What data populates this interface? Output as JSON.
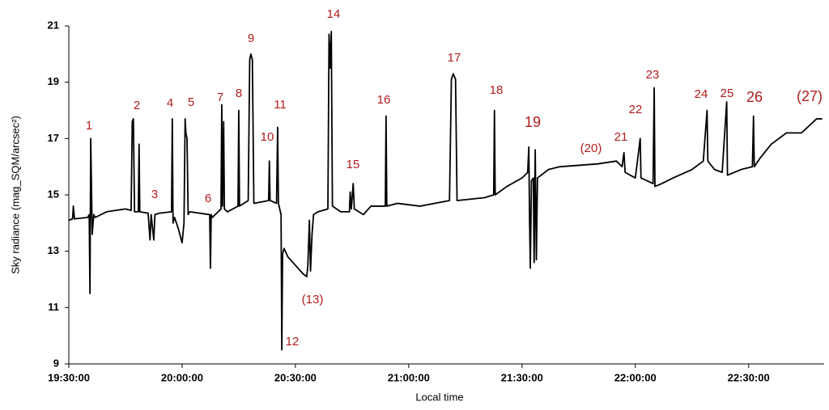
{
  "chart_data": {
    "type": "line",
    "y_label": "Sky radiance (mag_SQM/arcsec²)",
    "x_label": "Local time",
    "color": "#000000",
    "annotation_color": "#b01c1c",
    "xlim": [
      "19:30:00",
      "22:50:00"
    ],
    "xticks": [
      "19:30:00",
      "20:00:00",
      "20:30:00",
      "21:00:00",
      "21:30:00",
      "22:00:00",
      "22:30:00"
    ],
    "ylim": [
      9,
      21
    ],
    "yticks": [
      9,
      11,
      13,
      15,
      17,
      19,
      21
    ],
    "grid": false,
    "annotations": [
      "1",
      "2",
      "3",
      "4",
      "5",
      "6",
      "7",
      "8",
      "9",
      "10",
      "11",
      "12",
      "(13)",
      "14",
      "15",
      "16",
      "17",
      "18",
      "19",
      "(20)",
      "21",
      "22",
      "23",
      "24",
      "25",
      "26",
      "(27)"
    ],
    "x": [
      "19:30:00",
      "19:31:00",
      "19:31:12",
      "19:31:30",
      "19:35:00",
      "19:35:24",
      "19:35:36",
      "19:35:48",
      "19:36:12",
      "19:36:36",
      "19:37:00",
      "19:40:00",
      "19:45:00",
      "19:46:30",
      "19:46:48",
      "19:47:06",
      "19:47:24",
      "19:48:24",
      "19:48:36",
      "19:48:48",
      "19:51:00",
      "19:51:30",
      "19:51:48",
      "19:52:30",
      "19:52:48",
      "19:54:00",
      "19:57:12",
      "19:57:24",
      "19:57:36",
      "19:58:00",
      "19:59:00",
      "20:00:00",
      "20:00:30",
      "20:00:48",
      "20:01:00",
      "20:01:18",
      "20:01:36",
      "20:02:00",
      "20:07:18",
      "20:07:30",
      "20:07:42",
      "20:08:00",
      "20:10:18",
      "20:10:30",
      "20:10:42",
      "20:11:00",
      "20:11:12",
      "20:12:00",
      "20:14:48",
      "20:15:00",
      "20:15:12",
      "20:17:30",
      "20:17:54",
      "20:18:12",
      "20:18:36",
      "20:19:00",
      "20:22:54",
      "20:23:06",
      "20:23:18",
      "20:25:00",
      "20:25:18",
      "20:25:30",
      "20:26:12",
      "20:26:24",
      "20:26:36",
      "20:27:00",
      "20:28:00",
      "20:30:00",
      "20:32:00",
      "20:33:00",
      "20:33:18",
      "20:33:42",
      "20:34:00",
      "20:34:24",
      "20:34:48",
      "20:36:00",
      "20:38:36",
      "20:38:54",
      "20:39:12",
      "20:39:30",
      "20:39:48",
      "20:42:00",
      "20:44:18",
      "20:44:30",
      "20:44:48",
      "20:45:18",
      "20:45:36",
      "20:48:00",
      "20:50:00",
      "20:53:48",
      "20:54:00",
      "20:54:12",
      "20:57:00",
      "21:03:00",
      "21:10:48",
      "21:11:18",
      "21:11:48",
      "21:12:24",
      "21:12:48",
      "21:20:00",
      "21:22:30",
      "21:22:42",
      "21:22:54",
      "21:26:00",
      "21:30:00",
      "21:31:30",
      "21:31:48",
      "21:32:00",
      "21:32:12",
      "21:32:30",
      "21:33:00",
      "21:33:12",
      "21:33:30",
      "21:33:48",
      "21:34:06",
      "21:37:00",
      "21:40:00",
      "21:50:00",
      "21:55:00",
      "21:56:30",
      "21:57:00",
      "21:57:18",
      "22:00:00",
      "22:01:18",
      "22:01:30",
      "22:04:42",
      "22:05:00",
      "22:05:12",
      "22:07:00",
      "22:10:00",
      "22:15:00",
      "22:18:00",
      "22:19:00",
      "22:19:12",
      "22:21:00",
      "22:23:00",
      "22:24:12",
      "22:24:24",
      "22:28:00",
      "22:31:00",
      "22:31:18",
      "22:31:30",
      "22:33:00",
      "22:36:00",
      "22:40:00",
      "22:44:00",
      "22:48:00",
      "22:49:30"
    ],
    "values": [
      14.1,
      14.15,
      14.6,
      14.15,
      14.2,
      14.3,
      11.5,
      17.0,
      13.6,
      14.3,
      14.2,
      14.4,
      14.5,
      14.45,
      17.6,
      17.7,
      14.4,
      14.4,
      16.8,
      14.4,
      14.35,
      13.4,
      14.3,
      13.4,
      14.3,
      14.35,
      14.4,
      17.7,
      14.0,
      14.2,
      13.8,
      13.3,
      14.0,
      17.7,
      17.2,
      17.0,
      14.3,
      14.4,
      14.3,
      12.4,
      14.3,
      14.2,
      14.5,
      18.2,
      14.6,
      17.6,
      14.5,
      14.4,
      14.6,
      18.0,
      14.6,
      14.8,
      19.8,
      20.0,
      19.8,
      14.7,
      14.8,
      16.2,
      14.8,
      14.7,
      17.4,
      14.7,
      14.3,
      9.5,
      12.9,
      13.1,
      12.8,
      12.5,
      12.2,
      12.1,
      12.5,
      14.1,
      12.3,
      13.6,
      14.3,
      14.4,
      14.5,
      20.7,
      19.5,
      20.8,
      14.6,
      14.4,
      14.4,
      15.1,
      14.5,
      15.4,
      14.5,
      14.3,
      14.6,
      14.6,
      17.8,
      14.6,
      14.7,
      14.6,
      14.8,
      19.1,
      19.3,
      19.1,
      14.8,
      14.9,
      15.0,
      18.0,
      15.0,
      15.3,
      15.6,
      15.8,
      16.7,
      14.1,
      12.4,
      15.5,
      15.6,
      12.6,
      16.6,
      12.7,
      15.6,
      15.9,
      16.0,
      16.1,
      16.2,
      16.0,
      16.5,
      15.8,
      15.6,
      17.0,
      15.6,
      15.4,
      18.8,
      15.3,
      15.4,
      15.6,
      15.9,
      16.2,
      18.0,
      16.2,
      15.9,
      15.8,
      18.3,
      15.7,
      15.9,
      16.0,
      17.8,
      16.0,
      16.3,
      16.8,
      17.2,
      17.2,
      17.7,
      17.7
    ]
  }
}
